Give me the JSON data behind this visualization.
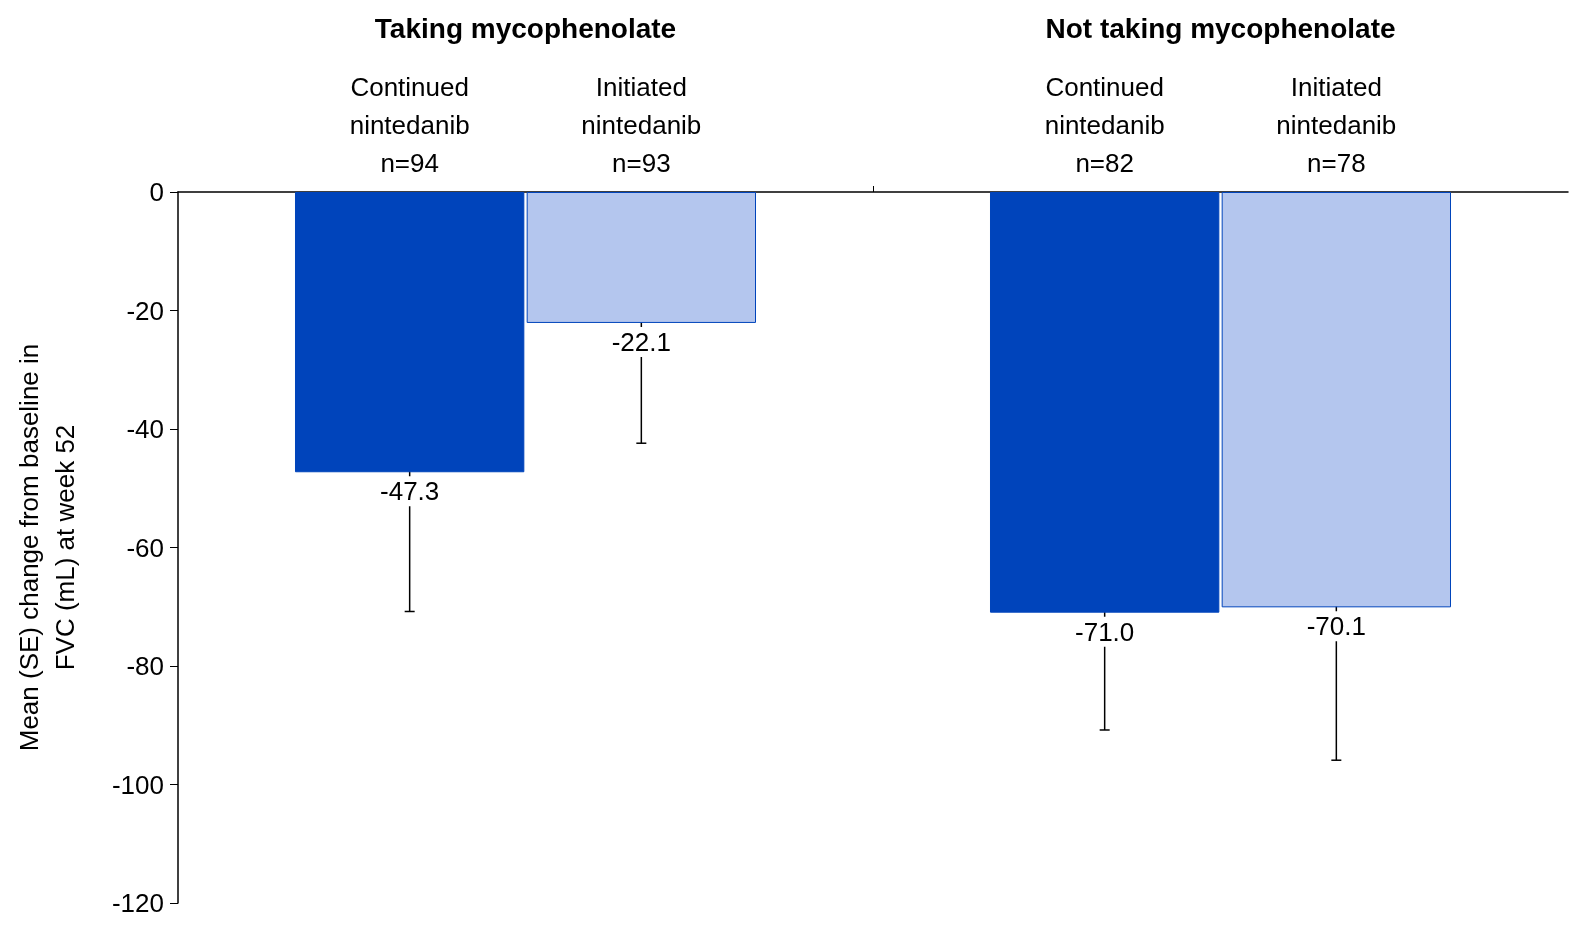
{
  "chart_data": {
    "type": "bar",
    "categories": [
      null,
      "Continued\nnintedanib\nn=94",
      "Initiated\nnintedanib\nn=93",
      null,
      "Continued\nnintedanib\nn=82",
      "Initiated\nnintedanib\nn=78",
      null
    ],
    "values": [
      null,
      -47.3,
      -22.1,
      null,
      -71.0,
      -70.1,
      null
    ],
    "errors": [
      null,
      23.5,
      20.3,
      null,
      19.8,
      25.8,
      null
    ],
    "colors": [
      "#0044bb",
      "#0044bb",
      "#b4c6ee",
      "#0044bb",
      "#0044bb",
      "#b4c6ee",
      "#0044bb"
    ],
    "value_labels": [
      null,
      "-47.3",
      "-22.1",
      null,
      "-71.0",
      "-70.1",
      null
    ],
    "ylabel": "Mean (SE) change from baseline in\nFVC (mL) at week 52",
    "ylim": [
      -120,
      0
    ],
    "yticks": [
      -120,
      -100,
      -80,
      -60,
      -40,
      -20,
      0
    ],
    "annotations": [
      "Taking mycophenolate",
      "Not taking mycophenolate"
    ],
    "grid": false
  }
}
